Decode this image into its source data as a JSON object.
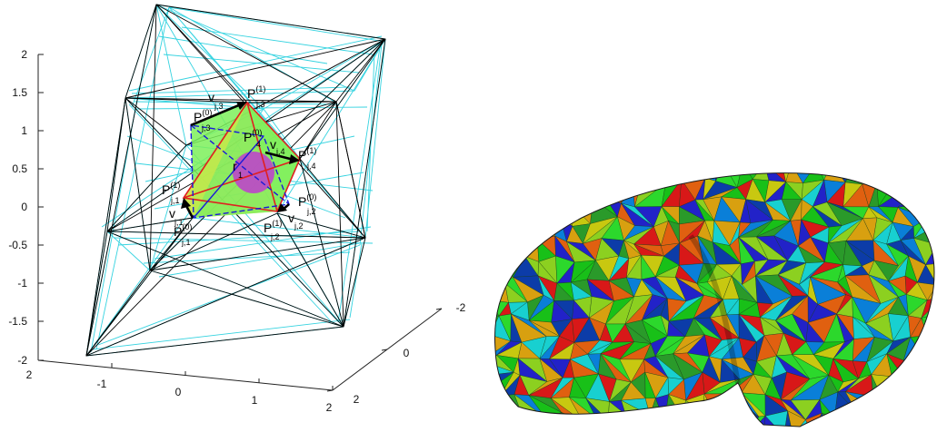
{
  "left_panel": {
    "z_ticks": [
      "2",
      "1.5",
      "1",
      "0.5",
      "0",
      "-0.5",
      "-1",
      "-1.5",
      "-2"
    ],
    "x_ticks": [
      "2",
      "-1",
      "0",
      "1",
      "2"
    ],
    "y_ticks": [
      "-2",
      "0",
      "2"
    ],
    "labels": {
      "p_j3_1": {
        "main": "P",
        "sup": "(1)",
        "sub": "j,3"
      },
      "v_j3": {
        "main": "v",
        "sub": "j,3"
      },
      "p_j3_0": {
        "main": "P",
        "sup": "(0)",
        "sub": "j,3"
      },
      "p_4_0": {
        "main": "P",
        "sup": "(0)",
        "sub": "4"
      },
      "v_j4": {
        "main": "v",
        "sub": "j,4"
      },
      "p_j4_1": {
        "main": "P",
        "sup": "(1)",
        "sub": "j,4"
      },
      "r_1": {
        "main": "r",
        "sub": "1"
      },
      "p_j1_1": {
        "main": "P",
        "sup": "(1)",
        "sub": "j,1"
      },
      "p_j2_0": {
        "main": "P",
        "sup": "(0)",
        "sub": "j,2"
      },
      "v_j1": {
        "main": "v",
        "sub": "j,1"
      },
      "p_j2_1": {
        "main": "P",
        "sup": "(1)",
        "sub": "j,2"
      },
      "v_j2": {
        "main": "v",
        "sub": "j,2"
      },
      "p_j1_0": {
        "main": "P",
        "sup": "(0)",
        "sub": "j,1"
      }
    },
    "colors": {
      "cyan_wire": "#36d3e0",
      "black_wire": "#000000",
      "green_fill": "#7cf05a",
      "orange_fill": "#f2c05a",
      "red_edge": "#e02020",
      "blue_edge": "#1a1ad8",
      "sphere": "#c03cd0"
    }
  },
  "right_panel": {
    "palette": [
      "#2222c8",
      "#0a7fd8",
      "#18d0d0",
      "#2cd82c",
      "#18c018",
      "#8cd020",
      "#c8c810",
      "#d8a010",
      "#e06010",
      "#d81818",
      "#2a9a2a",
      "#0c3ca8"
    ]
  }
}
